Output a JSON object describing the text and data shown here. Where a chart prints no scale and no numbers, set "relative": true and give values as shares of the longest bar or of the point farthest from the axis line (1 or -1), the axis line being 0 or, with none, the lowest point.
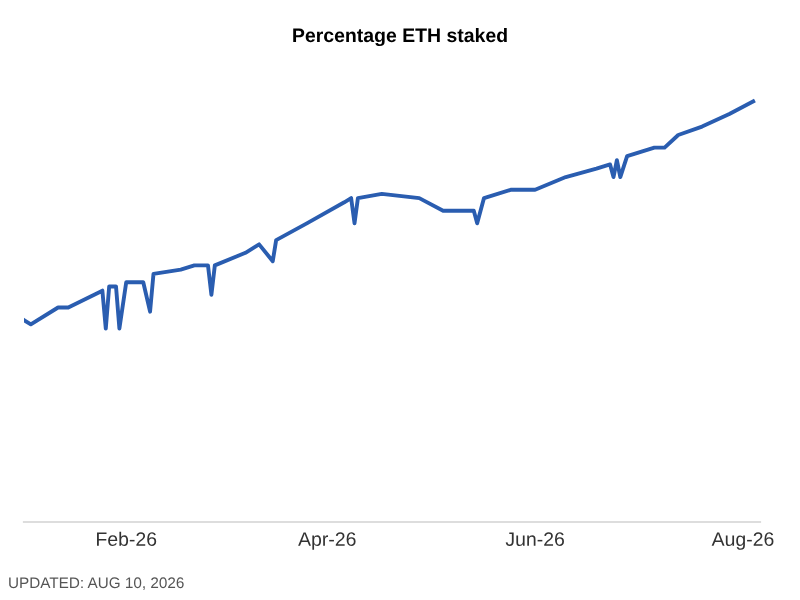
{
  "chart_data": {
    "type": "line",
    "title": "Percentage ETH staked",
    "relative": true,
    "x": [
      "2026-01-02",
      "2026-01-04",
      "2026-01-12",
      "2026-01-15",
      "2026-01-25",
      "2026-01-26",
      "2026-01-27",
      "2026-01-29",
      "2026-01-30",
      "2026-02-01",
      "2026-02-06",
      "2026-02-08",
      "2026-02-09",
      "2026-02-17",
      "2026-02-21",
      "2026-02-25",
      "2026-02-26",
      "2026-02-27",
      "2026-03-08",
      "2026-03-12",
      "2026-03-16",
      "2026-03-17",
      "2026-03-26",
      "2026-04-06",
      "2026-04-08",
      "2026-04-09",
      "2026-04-10",
      "2026-04-17",
      "2026-04-28",
      "2026-05-05",
      "2026-05-14",
      "2026-05-15",
      "2026-05-17",
      "2026-05-25",
      "2026-06-01",
      "2026-06-10",
      "2026-06-19",
      "2026-06-23",
      "2026-06-24",
      "2026-06-25",
      "2026-06-26",
      "2026-06-28",
      "2026-07-06",
      "2026-07-09",
      "2026-07-13",
      "2026-07-20",
      "2026-07-28",
      "2026-08-04"
    ],
    "series": [
      {
        "color": "#2a5db0",
        "values": [
          0.48,
          0.47,
          0.51,
          0.51,
          0.55,
          0.46,
          0.56,
          0.56,
          0.46,
          0.57,
          0.57,
          0.5,
          0.59,
          0.6,
          0.61,
          0.61,
          0.54,
          0.61,
          0.64,
          0.66,
          0.62,
          0.67,
          0.71,
          0.76,
          0.77,
          0.71,
          0.77,
          0.78,
          0.77,
          0.74,
          0.74,
          0.71,
          0.77,
          0.79,
          0.79,
          0.82,
          0.84,
          0.85,
          0.82,
          0.86,
          0.82,
          0.87,
          0.89,
          0.89,
          0.92,
          0.94,
          0.97,
          1.0
        ]
      }
    ],
    "xlim": [
      "2026-01-02",
      "2026-08-06"
    ],
    "xticks": [
      {
        "value": "2026-02-01",
        "label": "Feb-26"
      },
      {
        "value": "2026-04-01",
        "label": "Apr-26"
      },
      {
        "value": "2026-06-01",
        "label": "Jun-26"
      },
      {
        "value": "2026-08-01",
        "label": "Aug-26"
      }
    ],
    "grid": false,
    "legend": false,
    "marker": "none",
    "line_style": "solid",
    "annotations": [
      "UPDATED: AUG 10, 2026"
    ]
  }
}
